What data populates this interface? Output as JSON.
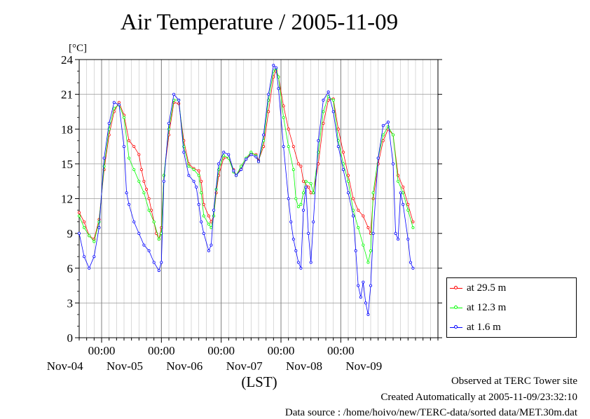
{
  "title": "Air Temperature / 2005-11-09",
  "footer": {
    "site": "Observed at TERC Tower site",
    "created": "Created Automatically at 2005-11-09/23:32:10",
    "source": "Data source : /home/hoivo/new/TERC-data/sorted  data/MET.30m.dat"
  },
  "legend": {
    "items": [
      {
        "label": "at 29.5 m",
        "color": "#ff0000"
      },
      {
        "label": "at 12.3 m",
        "color": "#00ff00"
      },
      {
        "label": "at 1.6 m",
        "color": "#0000ff"
      }
    ]
  },
  "chart_data": {
    "type": "line",
    "title": "Air Temperature / 2005-11-09",
    "ylabel": "[°C]",
    "xlabel": "(LST)",
    "ylim": [
      0,
      24
    ],
    "yticks": [
      0,
      3,
      6,
      9,
      12,
      15,
      18,
      21,
      24
    ],
    "x_tick_labels": [
      "00:00",
      "00:00",
      "00:00",
      "00:00",
      "00:00"
    ],
    "x_day_labels": [
      "Nov-04",
      "Nov-05",
      "Nov-06",
      "Nov-07",
      "Nov-08",
      "Nov-09"
    ],
    "x_unit": "hours since 2005-11-03 15:00 LST",
    "x_range": [
      0,
      144
    ],
    "grid": true,
    "legend_position": "bottom-right, outside plot",
    "series": [
      {
        "name": "at 29.5 m",
        "color": "#ff0000",
        "points": [
          [
            0,
            10.8
          ],
          [
            2,
            10.0
          ],
          [
            4,
            8.8
          ],
          [
            6,
            8.5
          ],
          [
            8,
            10.2
          ],
          [
            10,
            14.5
          ],
          [
            12,
            17.5
          ],
          [
            14,
            19.5
          ],
          [
            16,
            20.3
          ],
          [
            18,
            19.2
          ],
          [
            20,
            17.0
          ],
          [
            22,
            16.5
          ],
          [
            24,
            15.8
          ],
          [
            25,
            14.5
          ],
          [
            26,
            13.5
          ],
          [
            27,
            12.8
          ],
          [
            28,
            12.0
          ],
          [
            29,
            11.0
          ],
          [
            30,
            10.0
          ],
          [
            31,
            9.0
          ],
          [
            32,
            8.5
          ],
          [
            33,
            9.5
          ],
          [
            34,
            14.0
          ],
          [
            36,
            17.5
          ],
          [
            38,
            20.3
          ],
          [
            40,
            20.2
          ],
          [
            42,
            17.0
          ],
          [
            44,
            15.0
          ],
          [
            46,
            14.6
          ],
          [
            48,
            14.4
          ],
          [
            49,
            13.5
          ],
          [
            50,
            11.5
          ],
          [
            52,
            10.5
          ],
          [
            53,
            10.0
          ],
          [
            54,
            10.5
          ],
          [
            55,
            12.5
          ],
          [
            56,
            14.0
          ],
          [
            58,
            15.5
          ],
          [
            60,
            15.5
          ],
          [
            62,
            14.5
          ],
          [
            63,
            14.0
          ],
          [
            65,
            14.6
          ],
          [
            67,
            15.4
          ],
          [
            69,
            15.9
          ],
          [
            71,
            15.8
          ],
          [
            72,
            15.3
          ],
          [
            74,
            16.5
          ],
          [
            76,
            19.5
          ],
          [
            78,
            22.5
          ],
          [
            79,
            23.0
          ],
          [
            80,
            22.5
          ],
          [
            82,
            20.0
          ],
          [
            84,
            18.0
          ],
          [
            86,
            16.5
          ],
          [
            88,
            15.0
          ],
          [
            89,
            14.8
          ],
          [
            90,
            13.5
          ],
          [
            92,
            13.0
          ],
          [
            93,
            12.5
          ],
          [
            94,
            12.5
          ],
          [
            96,
            15.0
          ],
          [
            98,
            18.5
          ],
          [
            100,
            20.5
          ],
          [
            102,
            20.6
          ],
          [
            104,
            18.0
          ],
          [
            106,
            16.0
          ],
          [
            108,
            14.0
          ],
          [
            110,
            12.0
          ],
          [
            112,
            11.0
          ],
          [
            114,
            10.5
          ],
          [
            116,
            9.5
          ],
          [
            117,
            9.0
          ],
          [
            118,
            12.0
          ],
          [
            120,
            15.0
          ],
          [
            122,
            17.0
          ],
          [
            124,
            18.0
          ],
          [
            126,
            17.5
          ],
          [
            128,
            14.0
          ],
          [
            130,
            13.0
          ],
          [
            132,
            11.5
          ],
          [
            134,
            10.0
          ]
        ]
      },
      {
        "name": "at 12.3 m",
        "color": "#00ff00",
        "points": [
          [
            0,
            10.5
          ],
          [
            2,
            9.5
          ],
          [
            4,
            8.8
          ],
          [
            6,
            8.3
          ],
          [
            8,
            10.0
          ],
          [
            10,
            14.8
          ],
          [
            12,
            18.0
          ],
          [
            14,
            19.8
          ],
          [
            16,
            20.1
          ],
          [
            18,
            19.0
          ],
          [
            20,
            15.5
          ],
          [
            22,
            14.5
          ],
          [
            24,
            13.5
          ],
          [
            26,
            12.5
          ],
          [
            28,
            11.0
          ],
          [
            30,
            10.0
          ],
          [
            32,
            8.5
          ],
          [
            33,
            9.0
          ],
          [
            34,
            14.0
          ],
          [
            36,
            18.0
          ],
          [
            38,
            20.5
          ],
          [
            40,
            20.5
          ],
          [
            42,
            16.5
          ],
          [
            44,
            14.8
          ],
          [
            46,
            14.5
          ],
          [
            48,
            14.0
          ],
          [
            49,
            12.5
          ],
          [
            50,
            10.5
          ],
          [
            52,
            9.8
          ],
          [
            53,
            9.5
          ],
          [
            54,
            10.5
          ],
          [
            55,
            12.8
          ],
          [
            56,
            14.5
          ],
          [
            58,
            15.7
          ],
          [
            60,
            15.5
          ],
          [
            62,
            14.3
          ],
          [
            63,
            14.0
          ],
          [
            65,
            14.8
          ],
          [
            67,
            15.5
          ],
          [
            69,
            16.0
          ],
          [
            71,
            15.7
          ],
          [
            72,
            15.2
          ],
          [
            74,
            17.0
          ],
          [
            76,
            20.5
          ],
          [
            78,
            23.0
          ],
          [
            79,
            23.2
          ],
          [
            80,
            22.5
          ],
          [
            82,
            19.0
          ],
          [
            84,
            16.5
          ],
          [
            86,
            14.5
          ],
          [
            87,
            12.0
          ],
          [
            88,
            11.3
          ],
          [
            89,
            11.5
          ],
          [
            90,
            12.5
          ],
          [
            91,
            13.5
          ],
          [
            93,
            13.3
          ],
          [
            94,
            12.5
          ],
          [
            96,
            16.0
          ],
          [
            98,
            19.5
          ],
          [
            100,
            20.8
          ],
          [
            102,
            20.5
          ],
          [
            104,
            17.0
          ],
          [
            106,
            15.0
          ],
          [
            108,
            13.5
          ],
          [
            110,
            11.0
          ],
          [
            112,
            9.5
          ],
          [
            114,
            8.0
          ],
          [
            116,
            6.5
          ],
          [
            117,
            7.5
          ],
          [
            118,
            12.5
          ],
          [
            120,
            15.5
          ],
          [
            122,
            17.5
          ],
          [
            124,
            18.2
          ],
          [
            126,
            17.5
          ],
          [
            128,
            13.5
          ],
          [
            130,
            12.5
          ],
          [
            132,
            11.0
          ],
          [
            134,
            9.5
          ]
        ]
      },
      {
        "name": "at 1.6 m",
        "color": "#0000ff",
        "points": [
          [
            0,
            9.0
          ],
          [
            2,
            7.0
          ],
          [
            4,
            6.0
          ],
          [
            6,
            7.0
          ],
          [
            8,
            9.5
          ],
          [
            10,
            15.5
          ],
          [
            12,
            18.5
          ],
          [
            14,
            20.3
          ],
          [
            16,
            20.1
          ],
          [
            18,
            16.5
          ],
          [
            19,
            12.5
          ],
          [
            20,
            11.5
          ],
          [
            22,
            10.0
          ],
          [
            24,
            9.0
          ],
          [
            26,
            8.0
          ],
          [
            28,
            7.5
          ],
          [
            30,
            6.5
          ],
          [
            32,
            5.8
          ],
          [
            33,
            6.5
          ],
          [
            34,
            13.5
          ],
          [
            36,
            18.5
          ],
          [
            38,
            21.0
          ],
          [
            40,
            20.5
          ],
          [
            42,
            16.0
          ],
          [
            44,
            14.0
          ],
          [
            46,
            13.5
          ],
          [
            47,
            13.0
          ],
          [
            48,
            11.5
          ],
          [
            49,
            10.0
          ],
          [
            50,
            9.0
          ],
          [
            52,
            7.5
          ],
          [
            53,
            8.0
          ],
          [
            54,
            11.0
          ],
          [
            56,
            15.0
          ],
          [
            58,
            16.0
          ],
          [
            60,
            15.8
          ],
          [
            62,
            14.4
          ],
          [
            63,
            14.0
          ],
          [
            65,
            14.5
          ],
          [
            67,
            15.4
          ],
          [
            69,
            15.8
          ],
          [
            71,
            15.6
          ],
          [
            72,
            15.2
          ],
          [
            74,
            17.5
          ],
          [
            76,
            21.0
          ],
          [
            78,
            23.5
          ],
          [
            79,
            23.3
          ],
          [
            80,
            21.5
          ],
          [
            82,
            16.5
          ],
          [
            84,
            12.0
          ],
          [
            85,
            10.0
          ],
          [
            86,
            8.5
          ],
          [
            87,
            7.5
          ],
          [
            88,
            6.5
          ],
          [
            89,
            6.0
          ],
          [
            90,
            11.0
          ],
          [
            91,
            13.0
          ],
          [
            92,
            9.0
          ],
          [
            93,
            6.5
          ],
          [
            94,
            10.0
          ],
          [
            96,
            17.0
          ],
          [
            98,
            20.5
          ],
          [
            100,
            21.2
          ],
          [
            102,
            19.5
          ],
          [
            104,
            16.5
          ],
          [
            106,
            14.5
          ],
          [
            108,
            12.5
          ],
          [
            110,
            10.5
          ],
          [
            111,
            7.5
          ],
          [
            112,
            4.5
          ],
          [
            113,
            3.5
          ],
          [
            114,
            4.8
          ],
          [
            115,
            3.0
          ],
          [
            116,
            2.0
          ],
          [
            117,
            4.5
          ],
          [
            118,
            9.0
          ],
          [
            120,
            15.5
          ],
          [
            122,
            18.3
          ],
          [
            124,
            18.6
          ],
          [
            126,
            15.0
          ],
          [
            127,
            9.0
          ],
          [
            128,
            8.5
          ],
          [
            129,
            12.5
          ],
          [
            130,
            11.5
          ],
          [
            132,
            8.5
          ],
          [
            133,
            6.5
          ],
          [
            134,
            6.0
          ]
        ]
      }
    ]
  }
}
